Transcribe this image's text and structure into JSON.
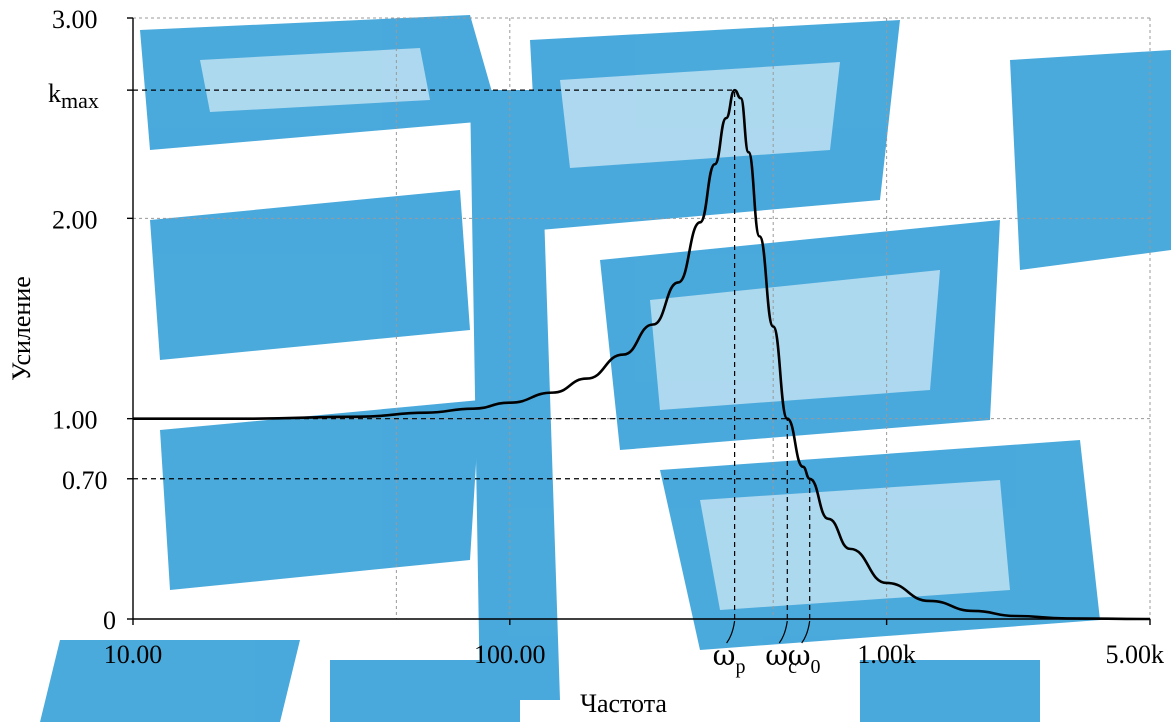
{
  "chart_data": {
    "type": "line",
    "title": "",
    "xlabel": "Частота",
    "ylabel": "Усиление",
    "xscale": "log",
    "xlim": [
      10,
      5000
    ],
    "ylim": [
      0,
      3
    ],
    "grid": true,
    "x_tick_labels": [
      {
        "value": 10,
        "label": "10.00"
      },
      {
        "value": 100,
        "label": "100.00"
      },
      {
        "value": 1000,
        "label": "1.00k"
      },
      {
        "value": 5000,
        "label": "5.00k"
      }
    ],
    "x_grid_values": [
      10,
      50,
      100,
      500,
      1000,
      5000
    ],
    "y_tick_labels": [
      {
        "value": 0,
        "label": "0"
      },
      {
        "value": 0.7,
        "label": "0.70"
      },
      {
        "value": 1,
        "label": "1.00"
      },
      {
        "value": 2,
        "label": "2.00"
      },
      {
        "value": 2.64,
        "label": "k",
        "subscript": "max"
      },
      {
        "value": 3,
        "label": "3.00"
      }
    ],
    "y_grid_values": [
      1,
      2,
      3
    ],
    "annotations": [
      {
        "symbol": "ω",
        "subscript": "p",
        "x": 395
      },
      {
        "symbol": "ω",
        "subscript": "c",
        "x": 545
      },
      {
        "symbol": "ω",
        "subscript": "0",
        "x": 625
      }
    ],
    "reference_lines": {
      "kmax": {
        "y": 2.64,
        "x": 395
      },
      "unity": {
        "y": 1,
        "x": 545
      },
      "level_070": {
        "y": 0.7,
        "x": 625
      }
    },
    "series": [
      {
        "values": [
          {
            "x": 10,
            "y": 1.0
          },
          {
            "x": 20,
            "y": 1.0
          },
          {
            "x": 40,
            "y": 1.01
          },
          {
            "x": 60,
            "y": 1.03
          },
          {
            "x": 80,
            "y": 1.05
          },
          {
            "x": 100,
            "y": 1.08
          },
          {
            "x": 130,
            "y": 1.13
          },
          {
            "x": 160,
            "y": 1.2
          },
          {
            "x": 200,
            "y": 1.32
          },
          {
            "x": 240,
            "y": 1.47
          },
          {
            "x": 280,
            "y": 1.68
          },
          {
            "x": 320,
            "y": 1.98
          },
          {
            "x": 350,
            "y": 2.27
          },
          {
            "x": 375,
            "y": 2.5
          },
          {
            "x": 395,
            "y": 2.64
          },
          {
            "x": 410,
            "y": 2.6
          },
          {
            "x": 430,
            "y": 2.33
          },
          {
            "x": 460,
            "y": 1.91
          },
          {
            "x": 500,
            "y": 1.46
          },
          {
            "x": 545,
            "y": 1.0
          },
          {
            "x": 600,
            "y": 0.76
          },
          {
            "x": 625,
            "y": 0.7
          },
          {
            "x": 700,
            "y": 0.5
          },
          {
            "x": 800,
            "y": 0.35
          },
          {
            "x": 1000,
            "y": 0.18
          },
          {
            "x": 1300,
            "y": 0.09
          },
          {
            "x": 1700,
            "y": 0.04
          },
          {
            "x": 2200,
            "y": 0.015
          },
          {
            "x": 3000,
            "y": 0.003
          },
          {
            "x": 5000,
            "y": 0.0
          }
        ]
      }
    ]
  }
}
